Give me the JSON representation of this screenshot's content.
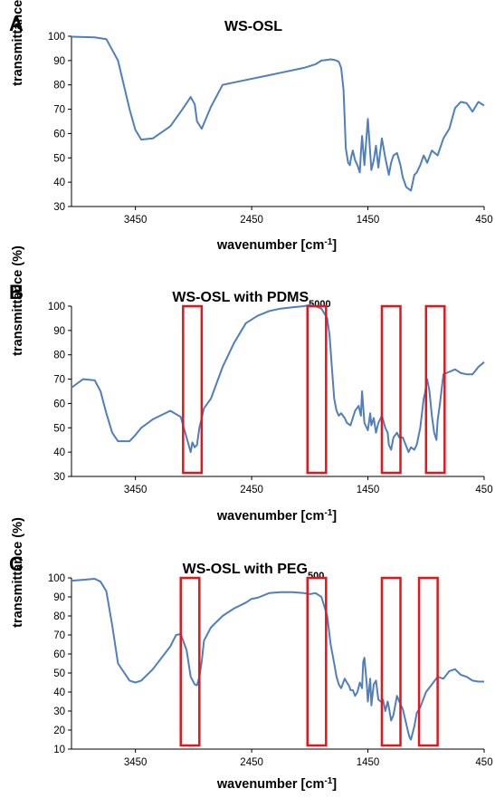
{
  "figure": {
    "curve_color": "#4f7fbf",
    "highlight_color": "#e8141a"
  },
  "chart_data": [
    {
      "type": "line",
      "panel": "A",
      "title": "WS-OSL",
      "title_subscript": "",
      "xlabel": "wavenumber [cm",
      "xlabel_sup": "-1",
      "xlabel_tail": "]",
      "ylabel": "transmittance (%)",
      "xlim": [
        4000,
        450
      ],
      "ylim": [
        30,
        100
      ],
      "xticks": [
        "3450",
        "2450",
        "1450",
        "450"
      ],
      "yticks": [
        "30",
        "40",
        "50",
        "60",
        "70",
        "80",
        "90",
        "100"
      ],
      "series": [
        {
          "x": [
            4000,
            3800,
            3700,
            3600,
            3500,
            3450,
            3400,
            3300,
            3150,
            3060,
            3010,
            2975,
            2940,
            2920,
            2880,
            2800,
            2700,
            2500,
            2300,
            2200,
            2000,
            1900,
            1850,
            1800,
            1770,
            1740,
            1720,
            1700,
            1680,
            1660,
            1650,
            1640,
            1620,
            1605,
            1595,
            1580,
            1560,
            1540,
            1520,
            1510,
            1500,
            1490,
            1480,
            1460,
            1450,
            1430,
            1420,
            1400,
            1380,
            1360,
            1330,
            1300,
            1270,
            1250,
            1230,
            1200,
            1170,
            1150,
            1120,
            1080,
            1050,
            1030,
            1000,
            970,
            940,
            900,
            850,
            800,
            750,
            700,
            650,
            600,
            550,
            500,
            450
          ],
          "y": [
            99.8,
            99.5,
            98.8,
            90,
            70,
            61.5,
            57.5,
            58,
            63,
            69,
            72.5,
            75,
            72,
            65,
            62,
            71,
            80,
            82,
            84,
            85,
            87,
            88.5,
            90,
            90.3,
            90.5,
            90.3,
            90,
            89.5,
            87,
            78,
            66,
            54,
            48,
            47,
            50,
            53,
            49,
            47,
            44,
            52,
            59,
            53,
            47,
            60,
            66,
            52,
            45,
            49,
            55,
            46,
            58,
            50,
            43,
            48,
            51,
            52,
            47,
            42,
            38,
            36.5,
            43,
            44,
            47,
            51,
            48,
            53,
            51,
            58,
            62,
            70.5,
            73,
            72.5,
            69,
            73,
            71.5
          ]
        }
      ],
      "highlights": []
    },
    {
      "type": "line",
      "panel": "B",
      "title": "WS-OSL with PDMS",
      "title_subscript": "5000",
      "xlabel": "wavenumber [cm",
      "xlabel_sup": "-1",
      "xlabel_tail": "]",
      "ylabel": "transmittance (%)",
      "xlim": [
        4000,
        450
      ],
      "ylim": [
        30,
        100
      ],
      "xticks": [
        "3450",
        "2450",
        "1450",
        "450"
      ],
      "yticks": [
        "30",
        "40",
        "50",
        "60",
        "70",
        "80",
        "90",
        "100"
      ],
      "series": [
        {
          "x": [
            4000,
            3900,
            3800,
            3750,
            3700,
            3650,
            3600,
            3500,
            3450,
            3400,
            3300,
            3150,
            3060,
            3010,
            2975,
            2960,
            2940,
            2920,
            2900,
            2880,
            2860,
            2800,
            2700,
            2600,
            2500,
            2400,
            2300,
            2200,
            2100,
            2000,
            1950,
            1900,
            1850,
            1800,
            1780,
            1760,
            1740,
            1720,
            1700,
            1680,
            1650,
            1630,
            1600,
            1560,
            1530,
            1510,
            1500,
            1480,
            1450,
            1430,
            1420,
            1400,
            1380,
            1360,
            1330,
            1300,
            1280,
            1270,
            1250,
            1230,
            1200,
            1180,
            1150,
            1100,
            1080,
            1050,
            1030,
            1000,
            970,
            960,
            940,
            920,
            900,
            880,
            860,
            850,
            830,
            800,
            750,
            700,
            650,
            600,
            550,
            500,
            450
          ],
          "y": [
            66.5,
            70,
            69.5,
            65,
            56,
            48,
            44.5,
            44.5,
            47,
            50,
            53.5,
            57,
            54.5,
            46,
            40,
            44,
            42,
            43,
            50,
            54,
            58,
            62,
            75,
            85,
            93,
            96,
            98,
            99,
            99.5,
            100,
            100.5,
            100,
            99,
            95,
            88,
            75,
            62,
            57,
            55,
            56,
            54,
            52,
            51,
            57,
            59,
            55,
            65,
            52,
            49,
            56,
            51,
            54,
            48,
            52,
            55,
            50,
            48,
            43,
            41,
            46,
            48,
            46,
            46,
            40,
            42,
            41,
            43,
            50,
            62,
            64,
            70,
            65,
            55,
            48,
            45,
            53,
            60,
            72,
            73,
            74,
            72.5,
            72,
            72,
            75,
            77
          ]
        }
      ],
      "highlights": [
        {
          "x_from": 3040,
          "x_to": 2880
        },
        {
          "x_from": 1970,
          "x_to": 1810
        },
        {
          "x_from": 1330,
          "x_to": 1170
        },
        {
          "x_from": 950,
          "x_to": 790
        }
      ]
    },
    {
      "type": "line",
      "panel": "C",
      "title": "WS-OSL with PEG",
      "title_subscript": "500",
      "xlabel": "wavenumber [cm",
      "xlabel_sup": "-1",
      "xlabel_tail": "]",
      "ylabel": "transmittance (%)",
      "xlim": [
        4000,
        450
      ],
      "ylim": [
        10,
        100
      ],
      "xticks": [
        "3450",
        "2450",
        "1450",
        "450"
      ],
      "yticks": [
        "10",
        "20",
        "30",
        "40",
        "50",
        "60",
        "70",
        "80",
        "90",
        "100"
      ],
      "series": [
        {
          "x": [
            4000,
            3900,
            3800,
            3750,
            3700,
            3650,
            3600,
            3500,
            3450,
            3400,
            3300,
            3150,
            3100,
            3060,
            3010,
            2975,
            2940,
            2920,
            2900,
            2880,
            2860,
            2800,
            2700,
            2600,
            2500,
            2450,
            2400,
            2300,
            2200,
            2100,
            2000,
            1950,
            1900,
            1850,
            1800,
            1770,
            1740,
            1720,
            1700,
            1680,
            1650,
            1630,
            1610,
            1600,
            1580,
            1560,
            1540,
            1520,
            1500,
            1490,
            1480,
            1460,
            1450,
            1430,
            1420,
            1400,
            1380,
            1360,
            1340,
            1320,
            1300,
            1280,
            1270,
            1250,
            1230,
            1200,
            1180,
            1150,
            1100,
            1090,
            1080,
            1050,
            1030,
            1000,
            950,
            900,
            850,
            800,
            750,
            700,
            650,
            600,
            550,
            500,
            450
          ],
          "y": [
            98.5,
            99,
            99.5,
            98,
            93,
            75,
            55,
            46,
            45,
            46,
            52,
            64,
            70,
            70.5,
            62,
            48,
            44,
            43.5,
            48,
            56,
            67,
            74,
            80,
            84,
            87,
            89,
            89.5,
            92,
            92.5,
            92.5,
            92,
            91.5,
            92,
            90,
            80,
            65,
            55,
            48,
            44,
            42,
            47,
            45,
            43,
            41,
            41,
            38,
            40,
            45,
            42,
            56,
            58,
            44,
            35,
            47,
            33,
            44,
            46,
            36,
            35,
            36,
            30,
            35,
            32,
            25,
            28,
            38,
            35,
            31,
            18,
            16,
            15,
            22,
            29,
            32,
            40,
            44,
            48,
            47,
            51,
            52,
            49,
            48,
            46,
            45.5,
            45.5
          ]
        }
      ],
      "highlights": [
        {
          "x_from": 3060,
          "x_to": 2900
        },
        {
          "x_from": 1970,
          "x_to": 1810
        },
        {
          "x_from": 1330,
          "x_to": 1170
        },
        {
          "x_from": 1010,
          "x_to": 850
        }
      ]
    }
  ]
}
